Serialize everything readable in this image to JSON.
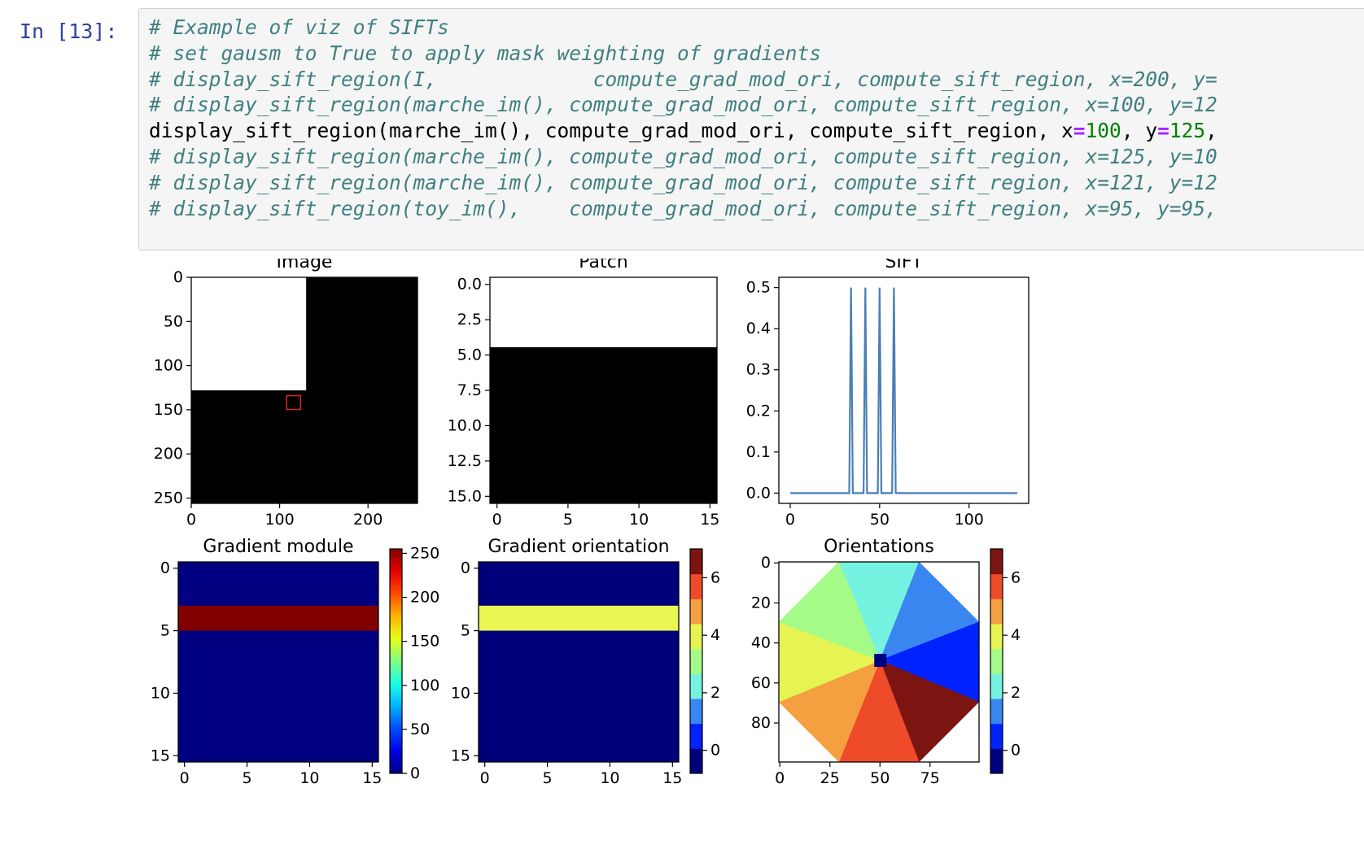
{
  "cell": {
    "prompt": "In [13]:",
    "lines": [
      {
        "type": "comment",
        "text": "# Example of viz of SIFTs"
      },
      {
        "type": "comment",
        "text": "# set gausm to True to apply mask weighting of gradients"
      },
      {
        "type": "comment",
        "text": "# display_sift_region(I,             compute_grad_mod_ori, compute_sift_region, x=200, y="
      },
      {
        "type": "comment",
        "text": "# display_sift_region(marche_im(), compute_grad_mod_ori, compute_sift_region, x=100, y=12"
      },
      {
        "type": "code",
        "parts": [
          "display_sift_region(marche_im(), compute_grad_mod_ori, compute_sift_region, x",
          "=",
          "100",
          ", y",
          "=",
          "125",
          ","
        ]
      },
      {
        "type": "comment",
        "text": "# display_sift_region(marche_im(), compute_grad_mod_ori, compute_sift_region, x=125, y=10"
      },
      {
        "type": "comment",
        "text": "# display_sift_region(marche_im(), compute_grad_mod_ori, compute_sift_region, x=121, y=12"
      },
      {
        "type": "comment",
        "text": "# display_sift_region(toy_im(),    compute_grad_mod_ori, compute_sift_region, x=95, y=95,"
      }
    ]
  },
  "colors": {
    "prompt": "#303f9f",
    "comment": "#408080",
    "operator": "#aa22ff",
    "number": "#008000",
    "line": "#4a7fb5",
    "rect": "#d62728"
  },
  "figure": {
    "titles": {
      "image": "Image",
      "patch": "Patch",
      "sift": "SIFT",
      "grad_mod": "Gradient module",
      "grad_ori": "Gradient orientation",
      "orient": "Orientations"
    },
    "image_yticks": [
      "0",
      "50",
      "100",
      "150",
      "200",
      "250"
    ],
    "image_xticks": [
      "0",
      "100",
      "200"
    ],
    "patch_yticks": [
      "0.0",
      "2.5",
      "5.0",
      "7.5",
      "10.0",
      "12.5",
      "15.0"
    ],
    "patch_xticks": [
      "0",
      "5",
      "10",
      "15"
    ],
    "sift_yticks": [
      "0.0",
      "0.1",
      "0.2",
      "0.3",
      "0.4",
      "0.5"
    ],
    "sift_xticks": [
      "0",
      "50",
      "100"
    ],
    "grad_yticks": [
      "0",
      "5",
      "10",
      "15"
    ],
    "grad_xticks": [
      "0",
      "5",
      "10",
      "15"
    ],
    "mod_cbar_ticks": [
      "0",
      "50",
      "100",
      "150",
      "200",
      "250"
    ],
    "ori_cbar_ticks": [
      "0",
      "2",
      "4",
      "6"
    ],
    "orient_yticks": [
      "0",
      "20",
      "40",
      "60",
      "80"
    ],
    "orient_xticks": [
      "0",
      "25",
      "50",
      "75"
    ],
    "orient_cbar_ticks": [
      "0",
      "2",
      "4",
      "6"
    ]
  },
  "chart_data": [
    {
      "type": "heatmap",
      "title": "Image",
      "description_values": {
        "size": 256,
        "white_region_x_max": 130,
        "white_region_y_max": 128,
        "marker_x": 108,
        "marker_y": 134
      },
      "xlim": [
        0,
        256
      ],
      "ylim": [
        256,
        0
      ]
    },
    {
      "type": "heatmap",
      "title": "Patch",
      "values_rows_white": [
        0,
        1,
        2,
        3,
        4
      ],
      "xlim": [
        0,
        16
      ],
      "ylim": [
        16,
        0
      ]
    },
    {
      "type": "line",
      "title": "SIFT",
      "x": [
        0,
        33,
        34,
        35,
        41,
        42,
        43,
        49,
        50,
        51,
        57,
        58,
        59,
        127
      ],
      "y": [
        0,
        0,
        0.5,
        0,
        0,
        0.5,
        0,
        0,
        0.5,
        0,
        0,
        0.5,
        0,
        0
      ],
      "xlim": [
        0,
        128
      ],
      "ylim": [
        0,
        0.5
      ]
    },
    {
      "type": "heatmap",
      "title": "Gradient module",
      "high_rows": [
        4,
        5
      ],
      "high_value": 255,
      "low_value": 0,
      "colorbar_range": [
        0,
        255
      ]
    },
    {
      "type": "heatmap",
      "title": "Gradient orientation",
      "high_rows": [
        4,
        5
      ],
      "high_value": 4.71,
      "low_value": -0.8,
      "colorbar_range": [
        -0.8,
        7
      ]
    },
    {
      "type": "heatmap",
      "title": "Orientations",
      "center": [
        50,
        50
      ],
      "sectors": 8,
      "colorbar_range": [
        -0.8,
        7
      ]
    }
  ]
}
